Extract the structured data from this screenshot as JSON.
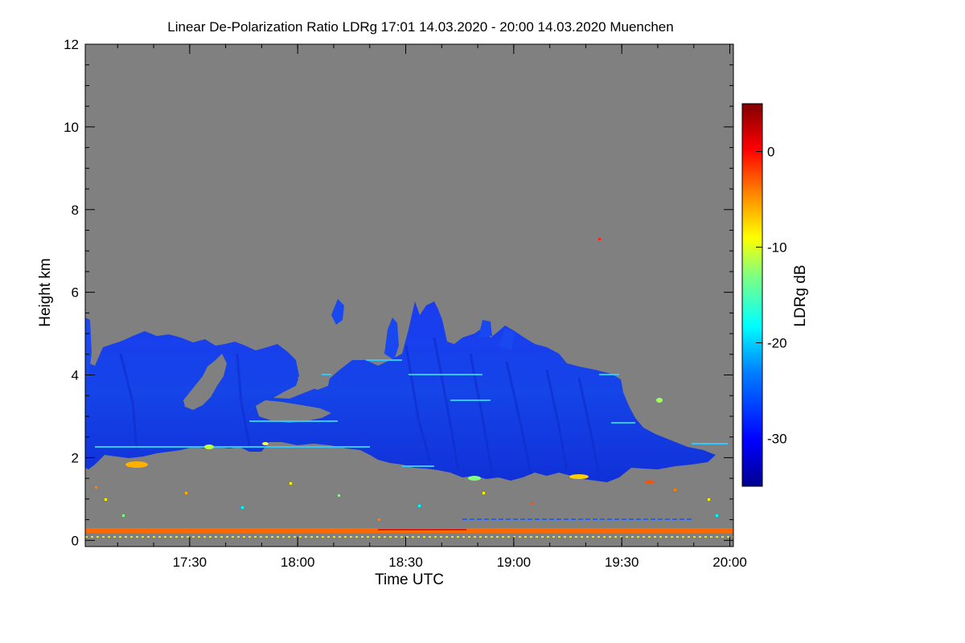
{
  "chart_data": {
    "type": "heatmap",
    "title": "Linear De-Polarization Ratio LDRg   17:01 14.03.2020 - 20:00 14.03.2020 Muenchen",
    "xlabel": "Time UTC",
    "ylabel": "Height km",
    "colorbar_label": "LDRg dB",
    "x_range_hours": [
      17.0167,
      20.0167
    ],
    "y_range_km": [
      -0.15,
      12.0
    ],
    "x_ticks": [
      {
        "value": 17.5,
        "label": "17:30"
      },
      {
        "value": 18.0,
        "label": "18:00"
      },
      {
        "value": 18.5,
        "label": "18:30"
      },
      {
        "value": 19.0,
        "label": "19:00"
      },
      {
        "value": 19.5,
        "label": "19:30"
      },
      {
        "value": 20.0,
        "label": "20:00"
      }
    ],
    "y_ticks": [
      {
        "value": 0,
        "label": "0"
      },
      {
        "value": 2,
        "label": "2"
      },
      {
        "value": 4,
        "label": "4"
      },
      {
        "value": 6,
        "label": "6"
      },
      {
        "value": 8,
        "label": "8"
      },
      {
        "value": 10,
        "label": "10"
      },
      {
        "value": 12,
        "label": "12"
      }
    ],
    "colorbar_range_db": [
      -35,
      5
    ],
    "colorbar_ticks": [
      {
        "value": 0,
        "label": "0"
      },
      {
        "value": -10,
        "label": "-10"
      },
      {
        "value": -20,
        "label": "-20"
      },
      {
        "value": -30,
        "label": "-30"
      }
    ],
    "colormap": [
      "#00008f",
      "#0000ff",
      "#0080ff",
      "#00ffff",
      "#80ff80",
      "#ffff00",
      "#ff8000",
      "#ff0000",
      "#800000"
    ],
    "no_signal_color": "#808080",
    "cloud_layers": [
      {
        "name": "main-cloud",
        "ldr_db": -30,
        "t_start": 17.02,
        "t_end": 19.95,
        "top_km": 4.9,
        "base_km": 2.0
      },
      {
        "name": "ground-layer",
        "ldr_db": -5,
        "height_km": 0.25
      }
    ]
  }
}
